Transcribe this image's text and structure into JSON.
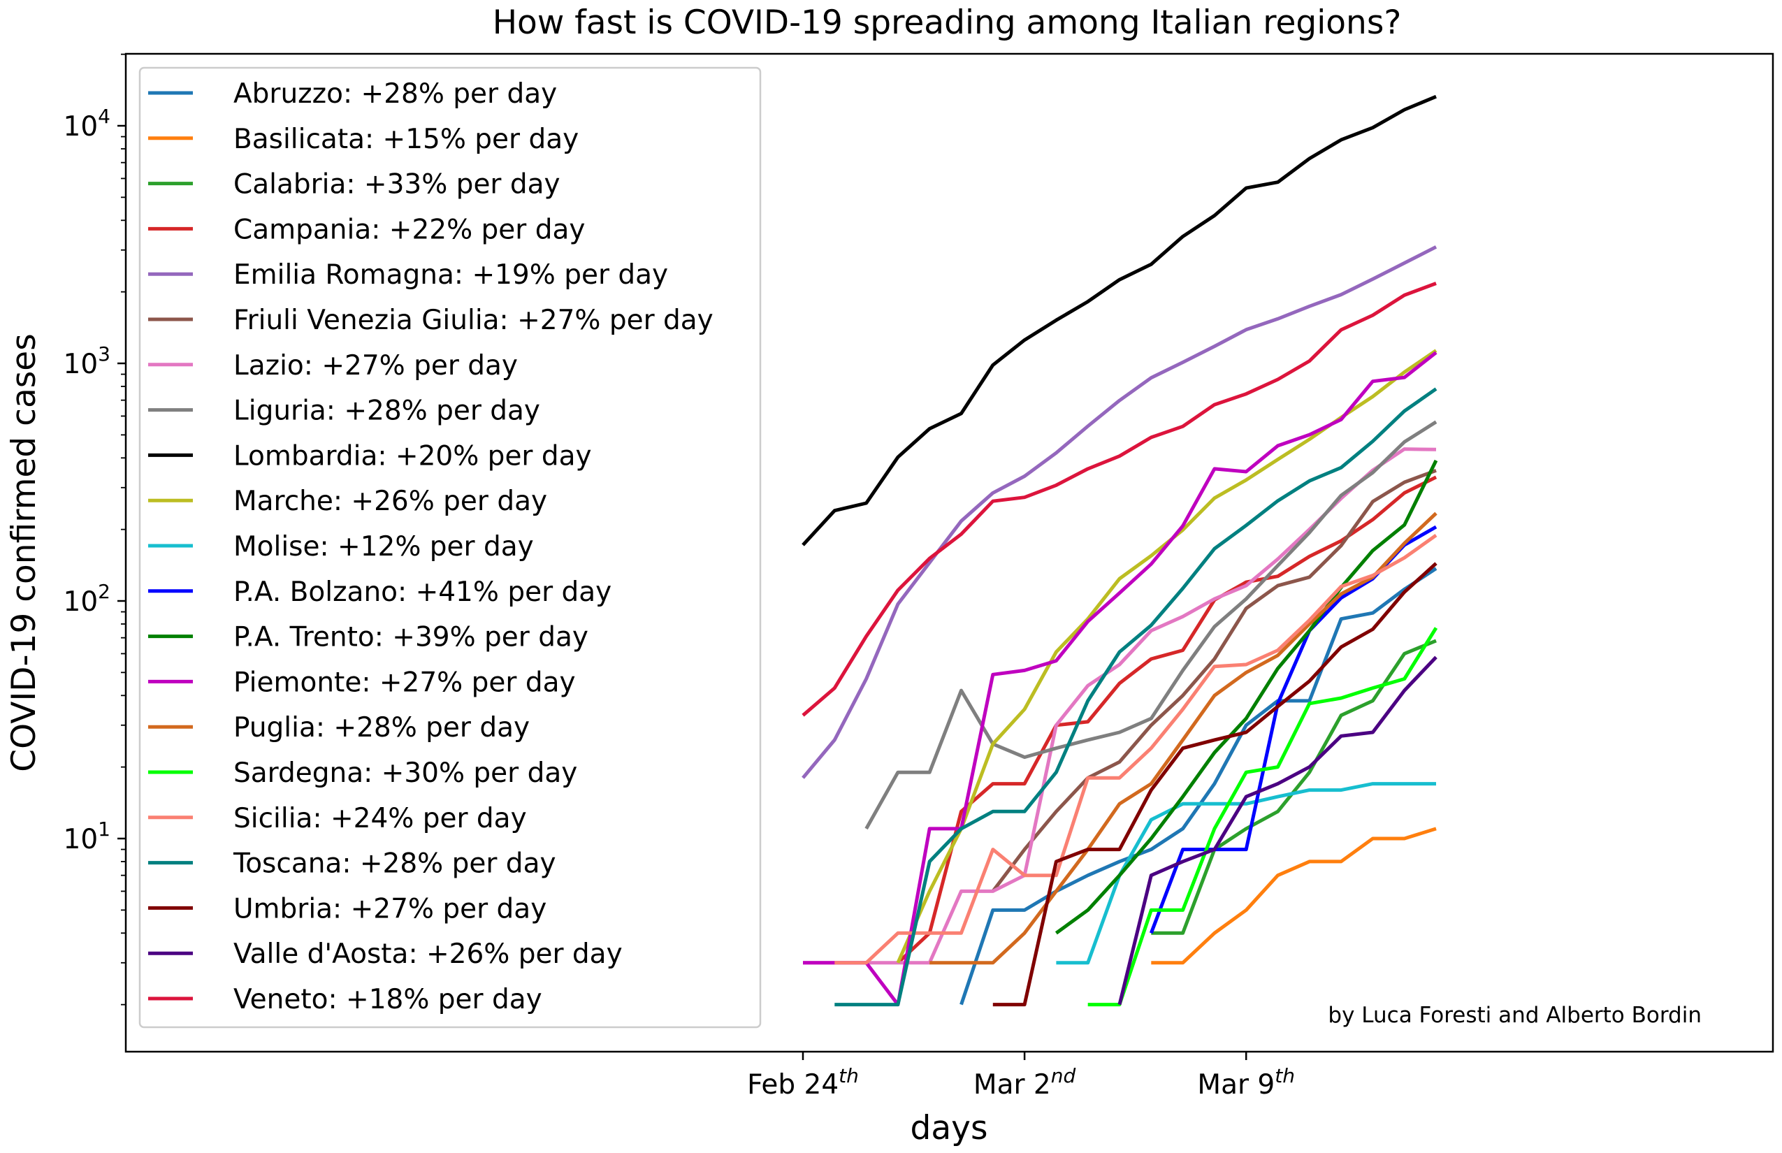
{
  "chart_data": {
    "type": "line",
    "title": "How fast is COVID-19 spreading among Italian regions?",
    "xlabel": "days",
    "ylabel": "COVID-19 confirmed cases",
    "yscale": "log",
    "ylim": [
      1.5,
      20000
    ],
    "x": [
      "Feb 24",
      "Feb 25",
      "Feb 26",
      "Feb 27",
      "Feb 28",
      "Feb 29",
      "Mar 1",
      "Mar 2",
      "Mar 3",
      "Mar 4",
      "Mar 5",
      "Mar 6",
      "Mar 7",
      "Mar 8",
      "Mar 9",
      "Mar 10",
      "Mar 11",
      "Mar 12",
      "Mar 13",
      "Mar 14",
      "Mar 15"
    ],
    "xlim": [
      "Feb 24",
      "Mar 15"
    ],
    "x_ticks": [
      {
        "date": "Feb 24",
        "label": "Feb 24",
        "suffix": "th"
      },
      {
        "date": "Mar 2",
        "label": "Mar 2",
        "suffix": "nd"
      },
      {
        "date": "Mar 9",
        "label": "Mar 9",
        "suffix": "th"
      }
    ],
    "y_ticks": [
      {
        "value": 10,
        "base": "10",
        "exp": "1"
      },
      {
        "value": 100,
        "base": "10",
        "exp": "2"
      },
      {
        "value": 1000,
        "base": "10",
        "exp": "3"
      },
      {
        "value": 10000,
        "base": "10",
        "exp": "4"
      }
    ],
    "legend_position": "top-left",
    "grid": false,
    "annotation": "by Luca Foresti and Alberto Bordin",
    "series": [
      {
        "name": "Abruzzo: +28% per day",
        "color": "#1f77b4",
        "values": [
          null,
          null,
          null,
          null,
          null,
          2,
          5,
          5,
          6,
          7,
          8,
          9,
          11,
          17,
          30,
          38,
          38,
          84,
          89,
          112,
          137
        ]
      },
      {
        "name": "Basilicata: +15% per day",
        "color": "#ff7f0e",
        "values": [
          null,
          null,
          null,
          null,
          null,
          null,
          null,
          null,
          null,
          null,
          null,
          3,
          3,
          4,
          5,
          7,
          8,
          8,
          10,
          10,
          11
        ]
      },
      {
        "name": "Calabria: +33% per day",
        "color": "#2ca02c",
        "values": [
          null,
          null,
          null,
          null,
          null,
          null,
          null,
          null,
          null,
          null,
          null,
          4,
          4,
          9,
          11,
          13,
          19,
          33,
          38,
          60,
          68
        ]
      },
      {
        "name": "Campania: +22% per day",
        "color": "#d62728",
        "values": [
          null,
          null,
          null,
          3,
          4,
          13,
          17,
          17,
          30,
          31,
          45,
          57,
          62,
          101,
          120,
          127,
          154,
          179,
          220,
          285,
          332
        ]
      },
      {
        "name": "Emilia Romagna: +19% per day",
        "color": "#9467bd",
        "values": [
          18,
          26,
          47,
          97,
          145,
          217,
          285,
          335,
          420,
          544,
          698,
          870,
          1010,
          1180,
          1386,
          1539,
          1739,
          1947,
          2263,
          2644,
          3093
        ]
      },
      {
        "name": "Friuli Venezia Giulia: +27% per day",
        "color": "#8c564b",
        "values": [
          null,
          null,
          null,
          null,
          null,
          null,
          6,
          9,
          13,
          18,
          21,
          30,
          40,
          57,
          93,
          116,
          126,
          171,
          262,
          316,
          354
        ]
      },
      {
        "name": "Lazio: +27% per day",
        "color": "#e377c2",
        "values": [
          3,
          3,
          3,
          3,
          3,
          6,
          6,
          7,
          30,
          44,
          54,
          75,
          86,
          102,
          116,
          150,
          200,
          270,
          355,
          436,
          434
        ]
      },
      {
        "name": "Liguria: +28% per day",
        "color": "#7f7f7f",
        "values": [
          null,
          null,
          11,
          19,
          19,
          42,
          25,
          22,
          24,
          26,
          28,
          32,
          51,
          78,
          102,
          141,
          194,
          278,
          347,
          467,
          567
        ]
      },
      {
        "name": "Lombardia: +20% per day",
        "color": "#000000",
        "values": [
          172,
          240,
          258,
          403,
          531,
          615,
          984,
          1254,
          1520,
          1820,
          2251,
          2612,
          3420,
          4189,
          5469,
          5791,
          7280,
          8725,
          9820,
          11685,
          13272
        ]
      },
      {
        "name": "Marche: +26% per day",
        "color": "#bcbd22",
        "values": [
          null,
          null,
          null,
          3,
          6,
          11,
          25,
          35,
          61,
          84,
          124,
          155,
          199,
          271,
          323,
          394,
          479,
          592,
          725,
          919,
          1133
        ]
      },
      {
        "name": "Molise: +12% per day",
        "color": "#17becf",
        "values": [
          null,
          null,
          null,
          null,
          null,
          null,
          null,
          null,
          3,
          3,
          7,
          12,
          14,
          14,
          14,
          15,
          16,
          16,
          17,
          17,
          17
        ]
      },
      {
        "name": "P.A. Bolzano: +41% per day",
        "color": "#0000ff",
        "values": [
          null,
          null,
          null,
          null,
          null,
          null,
          null,
          null,
          null,
          null,
          null,
          4,
          9,
          9,
          9,
          37,
          75,
          103,
          124,
          172,
          205
        ]
      },
      {
        "name": "P.A. Trento: +39% per day",
        "color": "#008000",
        "values": [
          null,
          null,
          null,
          null,
          null,
          null,
          null,
          null,
          4,
          5,
          7,
          10,
          15,
          23,
          32,
          52,
          75,
          114,
          163,
          209,
          390
        ]
      },
      {
        "name": "Piemonte: +27% per day",
        "color": "#bf00bf",
        "values": [
          3,
          3,
          3,
          2,
          11,
          11,
          49,
          51,
          56,
          82,
          108,
          143,
          207,
          360,
          350,
          450,
          501,
          580,
          840,
          873,
          1111
        ]
      },
      {
        "name": "Puglia: +28% per day",
        "color": "#d2691e",
        "values": [
          null,
          null,
          null,
          null,
          3,
          3,
          3,
          4,
          6,
          9,
          14,
          17,
          26,
          40,
          50,
          59,
          80,
          107,
          126,
          175,
          234
        ]
      },
      {
        "name": "Sardegna: +30% per day",
        "color": "#00ff00",
        "values": [
          null,
          null,
          null,
          null,
          null,
          null,
          null,
          null,
          null,
          2,
          2,
          5,
          5,
          11,
          19,
          20,
          37,
          39,
          43,
          47,
          77
        ]
      },
      {
        "name": "Sicilia: +24% per day",
        "color": "#fa8072",
        "values": [
          null,
          3,
          3,
          4,
          4,
          4,
          9,
          7,
          7,
          18,
          18,
          24,
          35,
          53,
          54,
          62,
          83,
          115,
          128,
          152,
          189
        ]
      },
      {
        "name": "Toscana: +28% per day",
        "color": "#008080",
        "values": [
          null,
          2,
          2,
          2,
          8,
          11,
          13,
          13,
          19,
          38,
          61,
          79,
          113,
          166,
          208,
          264,
          320,
          364,
          470,
          630,
          781
        ]
      },
      {
        "name": "Umbria: +27% per day",
        "color": "#800000",
        "values": [
          null,
          null,
          null,
          null,
          null,
          null,
          2,
          2,
          8,
          9,
          9,
          16,
          24,
          26,
          28,
          36,
          46,
          64,
          76,
          109,
          144
        ]
      },
      {
        "name": "Valle d'Aosta: +26% per day",
        "color": "#4b0082",
        "values": [
          null,
          null,
          null,
          null,
          null,
          null,
          null,
          null,
          null,
          null,
          2,
          7,
          8,
          9,
          15,
          17,
          20,
          27,
          28,
          42,
          58
        ]
      },
      {
        "name": "Veneto: +18% per day",
        "color": "#dc143c",
        "values": [
          33,
          43,
          71,
          111,
          151,
          191,
          263,
          273,
          307,
          360,
          407,
          488,
          543,
          670,
          744,
          856,
          1023,
          1384,
          1595,
          1937,
          2172
        ]
      }
    ]
  }
}
